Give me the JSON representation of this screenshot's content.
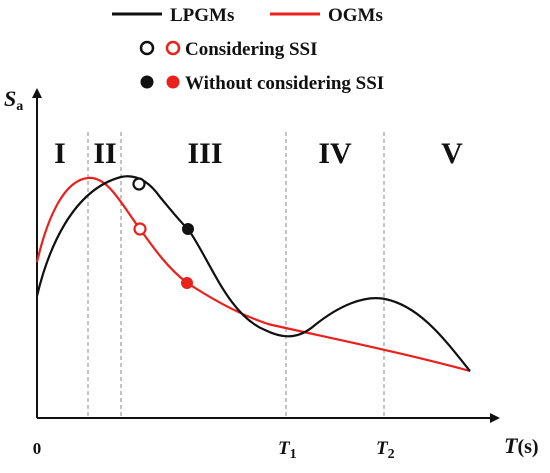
{
  "legend": {
    "row1": {
      "black_label": "LPGMs",
      "red_label": "OGMs"
    },
    "row2": {
      "label": "Considering SSI"
    },
    "row3": {
      "label": "Without considering SSI"
    }
  },
  "axes": {
    "y_symbol": "S",
    "y_subscript": "a",
    "x_symbol": "T",
    "x_unit": "(s)",
    "origin": "0",
    "t1_symbol": "T",
    "t1_sub": "1",
    "t2_symbol": "T",
    "t2_sub": "2"
  },
  "regions": [
    "I",
    "II",
    "III",
    "IV",
    "V"
  ],
  "colors": {
    "lpgm": "#111111",
    "ogm": "#e8211d",
    "divider": "#8a8a8a"
  }
}
